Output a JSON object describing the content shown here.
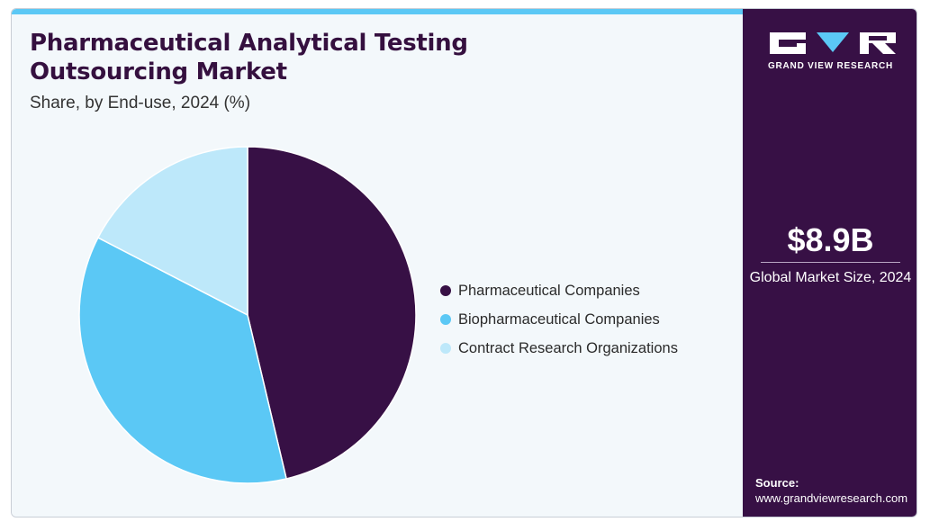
{
  "header": {
    "title": "Pharmaceutical Analytical Testing Outsourcing Market",
    "subtitle": "Share, by End-use, 2024 (%)"
  },
  "chart_data": {
    "type": "pie",
    "series": [
      {
        "categories": [
          "Pharmaceutical Companies",
          "Biopharmaceutical Companies",
          "Contract Research Organizations"
        ],
        "values": [
          46.3,
          36.3,
          17.4
        ],
        "colors": [
          "#371045",
          "#5bc8f5",
          "#bde8fa"
        ]
      }
    ],
    "legend": "right"
  },
  "sidebar": {
    "logo_text": "GRAND VIEW RESEARCH",
    "logo_icon": "gvr-logo-icon",
    "market_value": "$8.9B",
    "market_label": "Global Market Size, 2024",
    "source_label": "Source:",
    "source_url": "www.grandviewresearch.com"
  },
  "colors": {
    "brand_dark": "#371045",
    "brand_light": "#5bc8f5",
    "background": "#f3f8fb"
  }
}
